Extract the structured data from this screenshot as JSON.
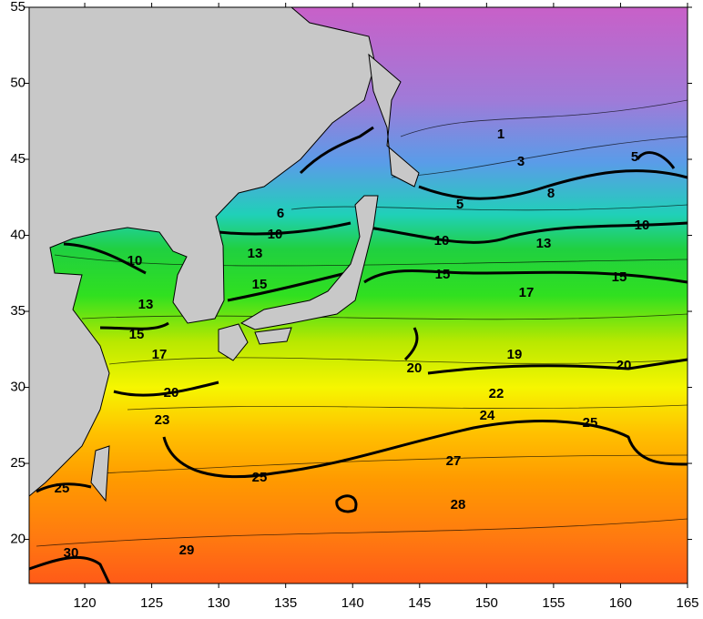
{
  "map": {
    "xlim": [
      115.85,
      165
    ],
    "ylim": [
      17.1,
      55
    ],
    "xticks": [
      120,
      125,
      130,
      135,
      140,
      145,
      150,
      155,
      160,
      165
    ],
    "yticks": [
      20,
      25,
      30,
      35,
      40,
      45,
      50,
      55
    ],
    "contour_labels": [
      "1",
      "3",
      "5",
      "5",
      "8",
      "6",
      "10",
      "10",
      "10",
      "10",
      "13",
      "13",
      "13",
      "15",
      "15",
      "15",
      "15",
      "17",
      "17",
      "19",
      "20",
      "20",
      "20",
      "22",
      "23",
      "24",
      "25",
      "25",
      "25",
      "27",
      "28",
      "29",
      "30"
    ]
  }
}
